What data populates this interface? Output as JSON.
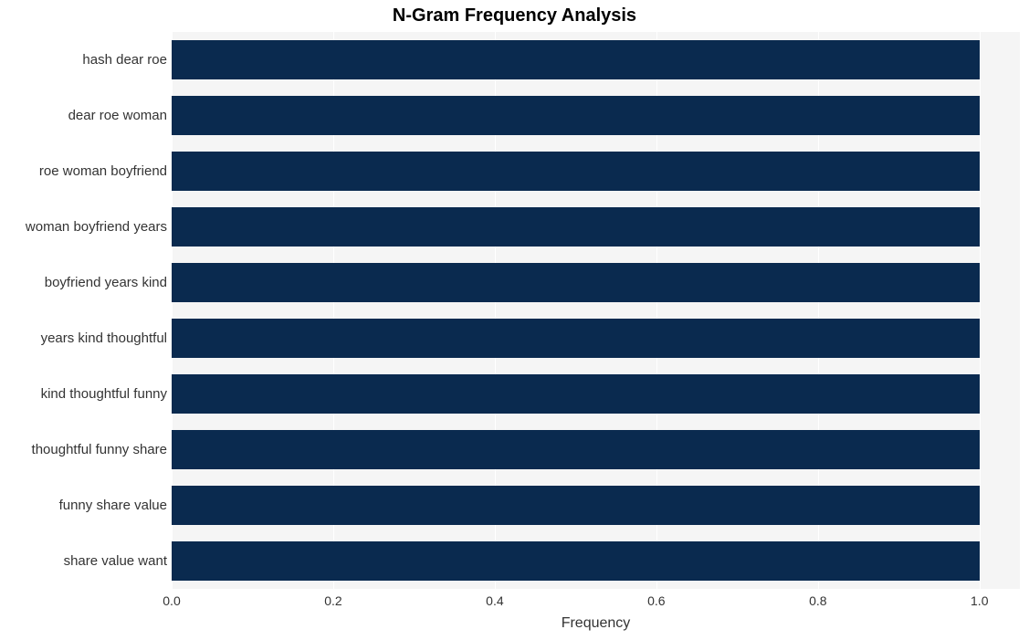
{
  "chart": {
    "type": "bar-horizontal",
    "title": "N-Gram Frequency Analysis",
    "title_fontsize": 20,
    "title_fontweight": 700,
    "background_color": "#ffffff",
    "plot_background_color": "#f5f5f5",
    "grid_color": "#ffffff",
    "bar_color": "#0a2a4f",
    "text_color": "#333333",
    "x_axis_label": "Frequency",
    "x_axis_label_fontsize": 16,
    "y_tick_fontsize": 15,
    "x_tick_fontsize": 14,
    "x_min": 0.0,
    "x_max": 1.05,
    "x_ticks": [
      0.0,
      0.2,
      0.4,
      0.6,
      0.8,
      1.0
    ],
    "x_tick_labels": [
      "0.0",
      "0.2",
      "0.4",
      "0.6",
      "0.8",
      "1.0"
    ],
    "categories": [
      "hash dear roe",
      "dear roe woman",
      "roe woman boyfriend",
      "woman boyfriend years",
      "boyfriend years kind",
      "years kind thoughtful",
      "kind thoughtful funny",
      "thoughtful funny share",
      "funny share value",
      "share value want"
    ],
    "values": [
      1.0,
      1.0,
      1.0,
      1.0,
      1.0,
      1.0,
      1.0,
      1.0,
      1.0,
      1.0
    ],
    "bar_width_ratio": 0.72
  }
}
